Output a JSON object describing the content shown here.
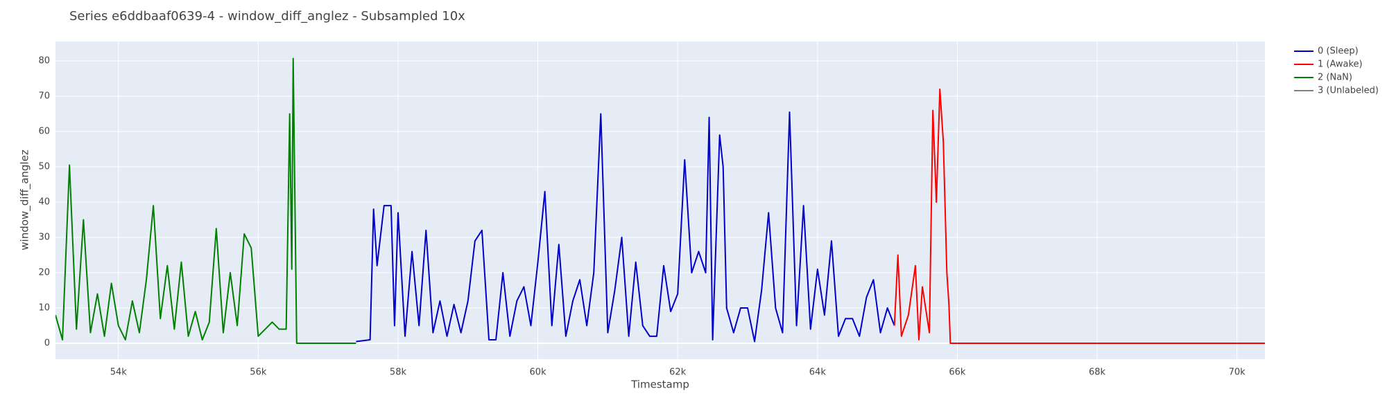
{
  "chart_data": {
    "type": "line",
    "title": "Series e6ddbaaf0639-4 - window_diff_anglez - Subsampled 10x",
    "x_label": "Timestamp",
    "y_label": "window_diff_anglez",
    "xlim": [
      53100,
      70400
    ],
    "ylim": [
      -4.5,
      85.5
    ],
    "xticks": [
      {
        "value": 54000,
        "label": "54k"
      },
      {
        "value": 56000,
        "label": "56k"
      },
      {
        "value": 58000,
        "label": "58k"
      },
      {
        "value": 60000,
        "label": "60k"
      },
      {
        "value": 62000,
        "label": "62k"
      },
      {
        "value": 64000,
        "label": "64k"
      },
      {
        "value": 66000,
        "label": "66k"
      },
      {
        "value": 68000,
        "label": "68k"
      },
      {
        "value": 70000,
        "label": "70k"
      }
    ],
    "yticks": [
      0,
      10,
      20,
      30,
      40,
      50,
      60,
      70,
      80
    ],
    "grid": true,
    "legend": "outside-right",
    "series": [
      {
        "name": "0 (Sleep)",
        "color": "#0000cd",
        "x": [
          57400,
          57600,
          57650,
          57700,
          57800,
          57900,
          57950,
          58000,
          58100,
          58200,
          58300,
          58400,
          58500,
          58600,
          58700,
          58800,
          58900,
          59000,
          59100,
          59200,
          59300,
          59400,
          59500,
          59600,
          59700,
          59800,
          59900,
          60000,
          60100,
          60200,
          60300,
          60400,
          60500,
          60600,
          60700,
          60800,
          60900,
          61000,
          61100,
          61200,
          61300,
          61400,
          61500,
          61600,
          61700,
          61800,
          61900,
          62000,
          62100,
          62200,
          62300,
          62400,
          62450,
          62500,
          62600,
          62650,
          62700,
          62800,
          62900,
          63000,
          63100,
          63200,
          63300,
          63400,
          63500,
          63600,
          63700,
          63800,
          63900,
          64000,
          64100,
          64200,
          64300,
          64400,
          64500,
          64600,
          64700,
          64800,
          64900,
          65000,
          65100
        ],
        "values": [
          0.5,
          1,
          38,
          22,
          39,
          39,
          5,
          37,
          2,
          26,
          5,
          32,
          3,
          12,
          2,
          11,
          3,
          12,
          29,
          32,
          1,
          1,
          20,
          2,
          12,
          16,
          5,
          23,
          43,
          5,
          28,
          2,
          12,
          18,
          5,
          20,
          65,
          3,
          15,
          30,
          2,
          23,
          5,
          2,
          2,
          22,
          9,
          14,
          52,
          20,
          26,
          20,
          64,
          1,
          59,
          50,
          10,
          3,
          10,
          10,
          0.5,
          15,
          37,
          10,
          3,
          65.5,
          5,
          39,
          4,
          21,
          8,
          29,
          2,
          7,
          7,
          2,
          13,
          18,
          3,
          10,
          5
        ]
      },
      {
        "name": "1 (Awake)",
        "color": "#ff0000",
        "x": [
          65100,
          65150,
          65200,
          65300,
          65400,
          65450,
          65500,
          65600,
          65650,
          65700,
          65750,
          65800,
          65850,
          65880,
          65900,
          70400
        ],
        "values": [
          5,
          25,
          2,
          8,
          22,
          1,
          16,
          3,
          66,
          40,
          72,
          57,
          20,
          11,
          0,
          0
        ]
      },
      {
        "name": "2 (NaN)",
        "color": "#008000",
        "x": [
          53100,
          53200,
          53300,
          53400,
          53500,
          53600,
          53700,
          53800,
          53900,
          54000,
          54100,
          54200,
          54300,
          54400,
          54500,
          54600,
          54700,
          54800,
          54900,
          55000,
          55100,
          55200,
          55300,
          55400,
          55500,
          55600,
          55700,
          55800,
          55900,
          56000,
          56100,
          56200,
          56300,
          56400,
          56450,
          56480,
          56500,
          56550,
          57400
        ],
        "values": [
          8,
          1,
          50.5,
          4,
          35,
          3,
          14,
          2,
          17,
          5,
          1,
          12,
          3,
          18,
          39,
          7,
          22,
          4,
          23,
          2,
          9,
          1,
          6,
          32.5,
          3,
          20,
          5,
          31,
          27,
          2,
          4,
          6,
          4,
          4,
          65,
          21,
          80.7,
          0,
          0
        ]
      },
      {
        "name": "3 (Unlabeled)",
        "color": "#808080",
        "x": [],
        "values": []
      }
    ]
  }
}
